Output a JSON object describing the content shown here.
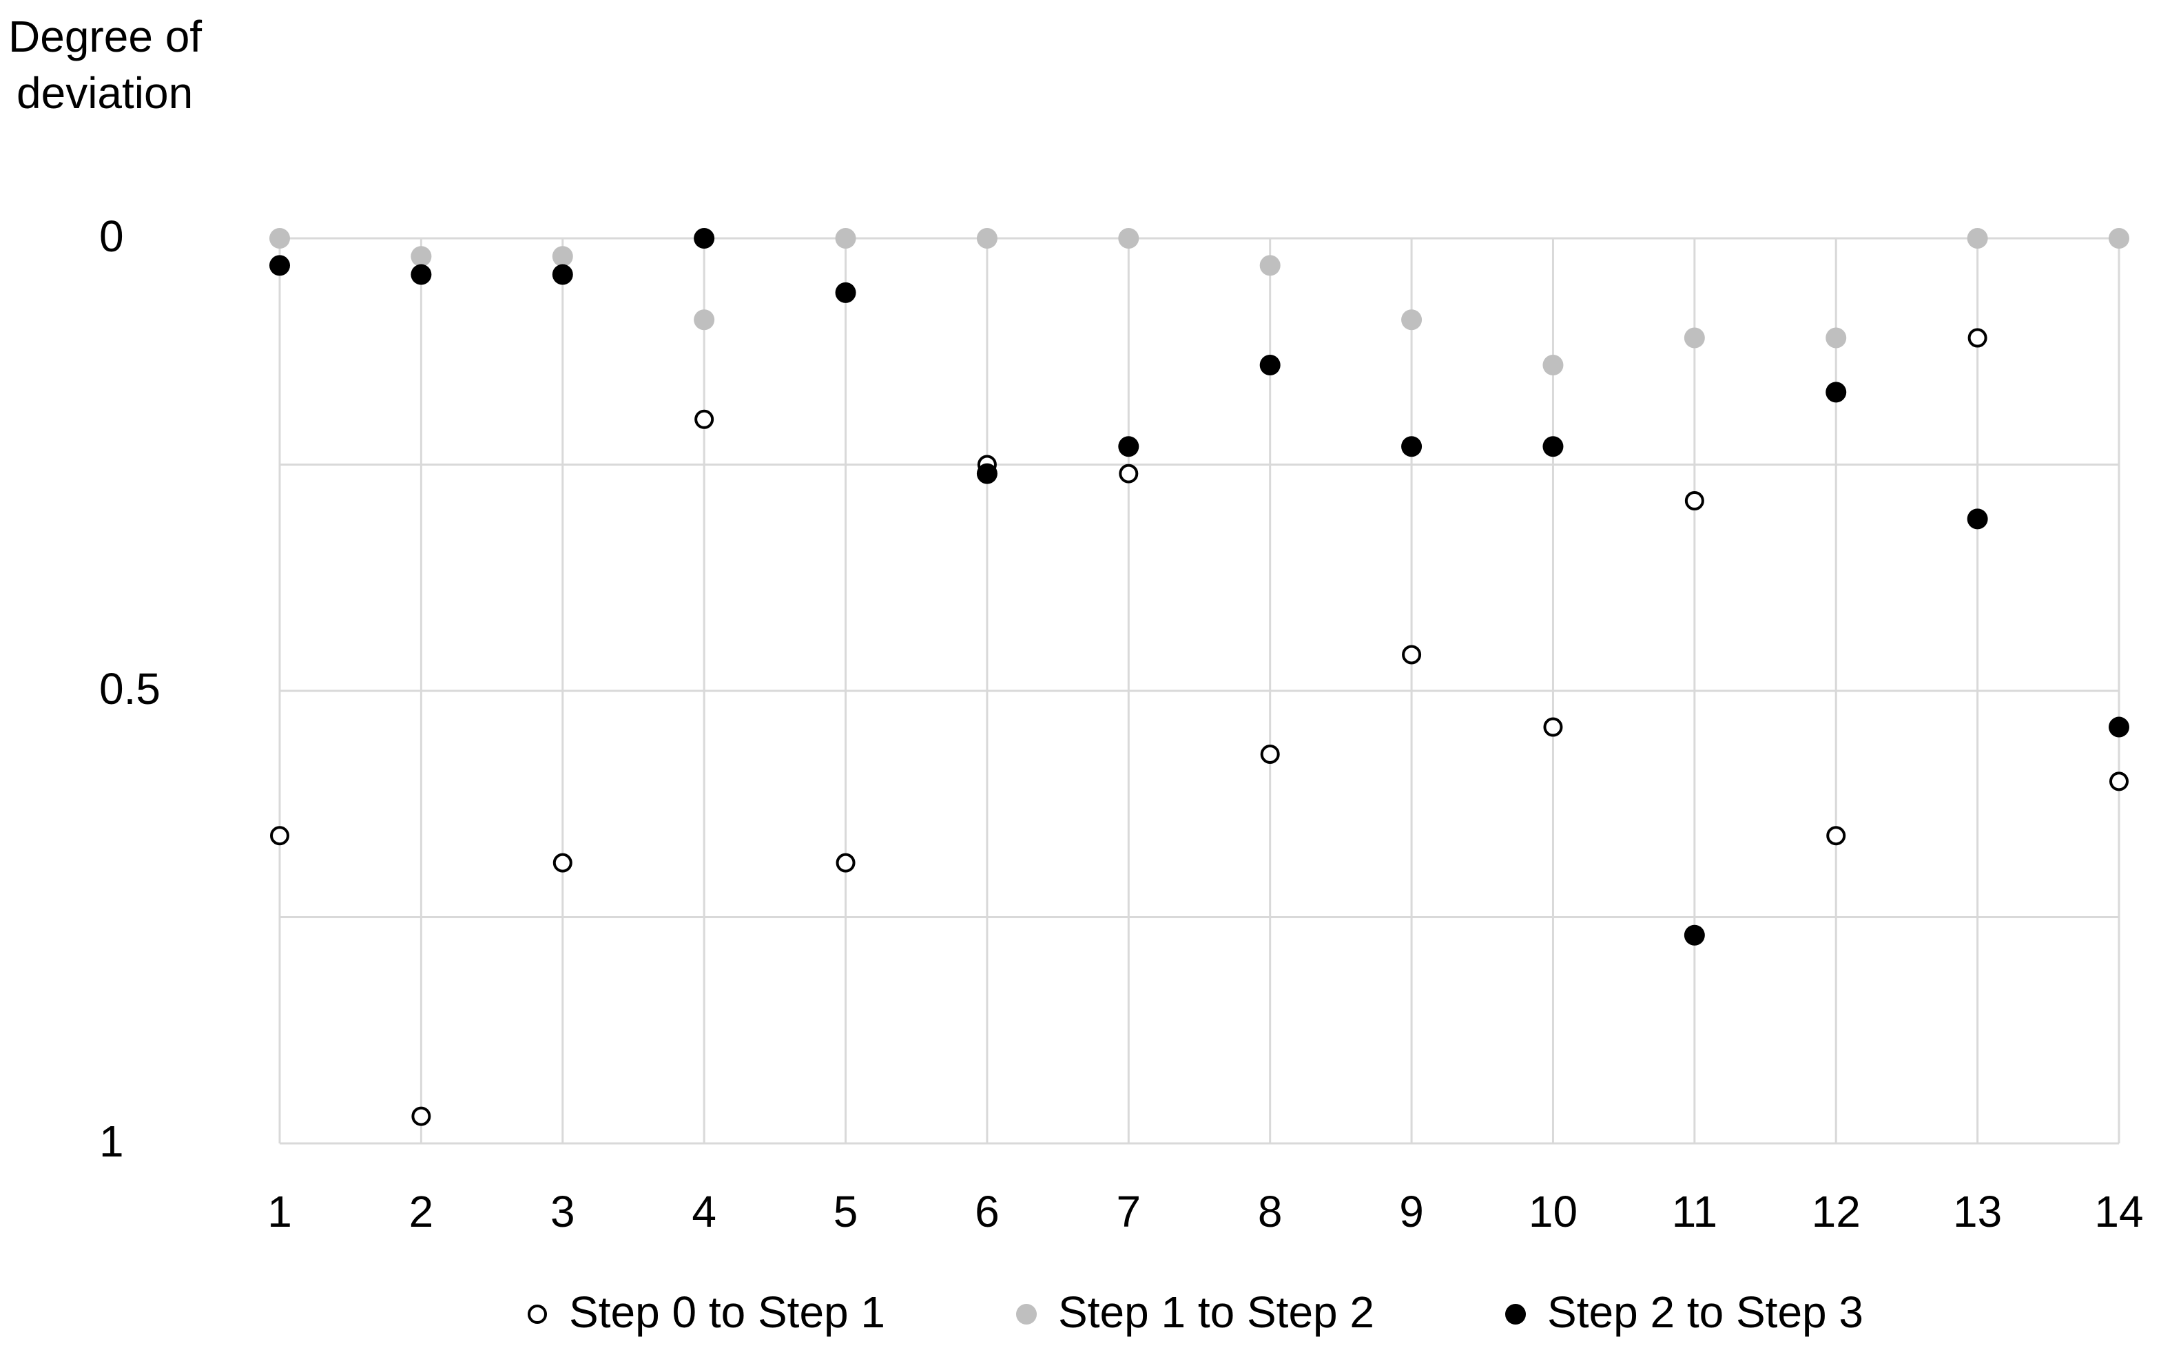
{
  "chart_data": {
    "type": "scatter",
    "ylabel": [
      "Degree of",
      "deviation"
    ],
    "x": [
      1,
      2,
      3,
      4,
      5,
      6,
      7,
      8,
      9,
      10,
      11,
      12,
      13,
      14
    ],
    "xlim": [
      1,
      14
    ],
    "xticks": [
      1,
      2,
      3,
      4,
      5,
      6,
      7,
      8,
      9,
      10,
      11,
      12,
      13,
      14
    ],
    "ylim": [
      0,
      1
    ],
    "yticks": [
      0,
      0.5,
      1
    ],
    "minor_ygrid": [
      0.25,
      0.75
    ],
    "y_inverted": true,
    "grid": true,
    "legend": "bottom",
    "series": [
      {
        "name": "Step 0 to Step 1",
        "color": "#000000",
        "marker": "open",
        "values": [
          0.66,
          0.97,
          0.69,
          0.2,
          0.69,
          0.25,
          0.26,
          0.57,
          0.46,
          0.54,
          0.29,
          0.66,
          0.11,
          0.6
        ]
      },
      {
        "name": "Step 1 to Step 2",
        "color": "#bfbfbf",
        "marker": "filled",
        "values": [
          0,
          0.02,
          0.02,
          0.09,
          0,
          0,
          0,
          0.03,
          0.09,
          0.14,
          0.11,
          0.11,
          0,
          0
        ]
      },
      {
        "name": "Step 2 to Step 3",
        "color": "#000000",
        "marker": "filled",
        "values": [
          0.03,
          0.04,
          0.04,
          0,
          0.06,
          0.26,
          0.23,
          0.14,
          0.23,
          0.23,
          0.77,
          0.17,
          0.31,
          0.54
        ]
      }
    ]
  }
}
